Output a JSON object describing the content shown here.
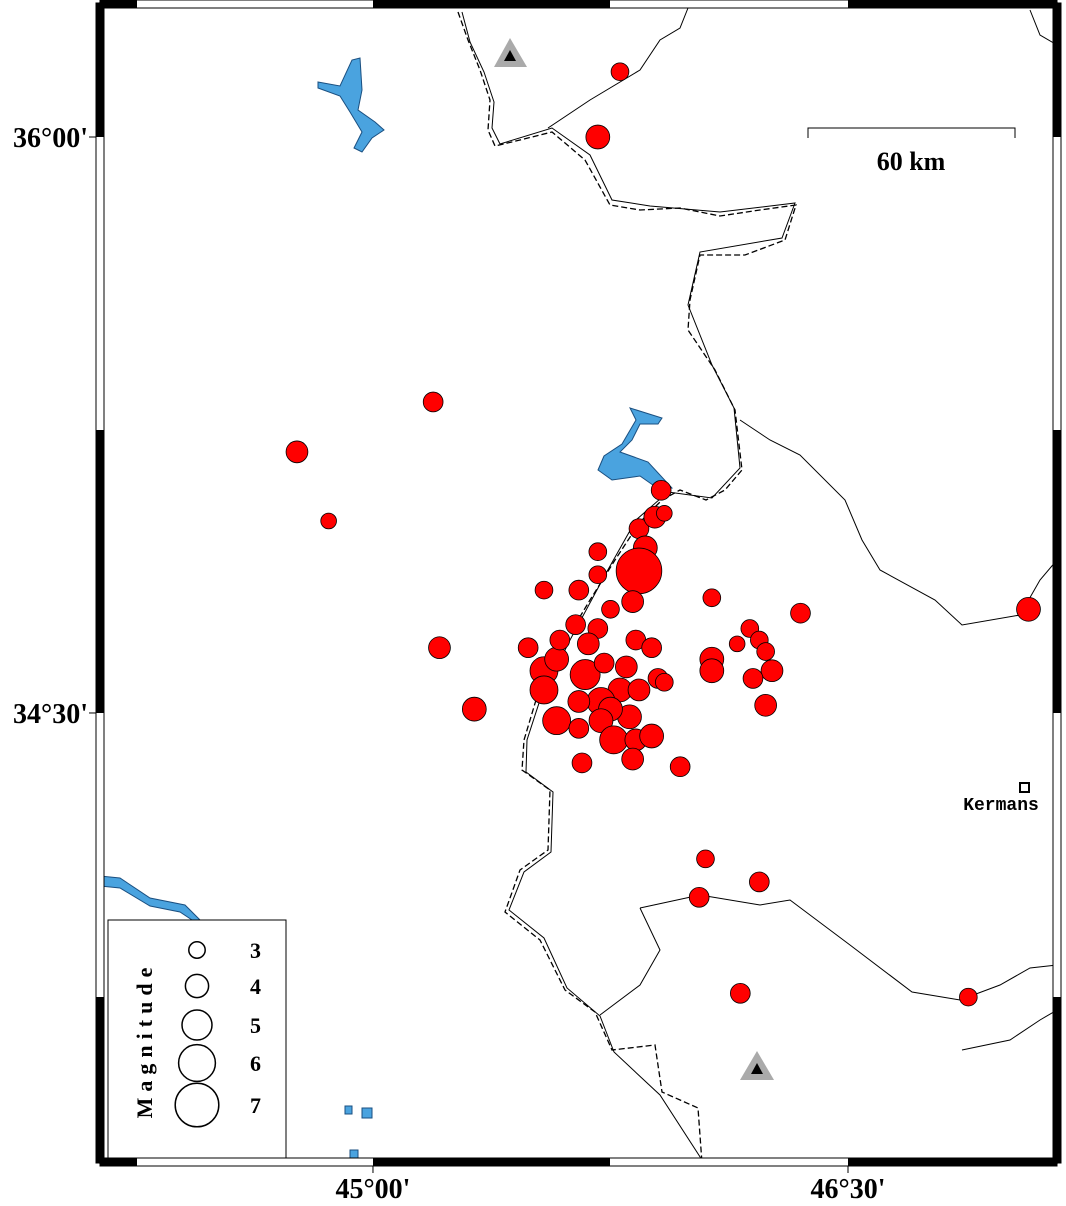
{
  "map": {
    "xlim": [
      44.138,
      47.16
    ],
    "ylim": [
      33.328,
      36.349
    ],
    "xticks": [
      {
        "value": 45,
        "label": "45°00'"
      },
      {
        "value": 46.5,
        "label": "46°30'"
      }
    ],
    "yticks": [
      {
        "value": 36,
        "label": "36°00'"
      },
      {
        "value": 34.5,
        "label": "34°30'"
      }
    ],
    "scale_label": "60 km",
    "city": "Kermans",
    "legend": {
      "title": "Magnitude",
      "sizes": [
        3,
        4,
        5,
        6,
        7
      ]
    },
    "events": {
      "lon": [
        45.78,
        45.71,
        45.19,
        44.76,
        44.86,
        45.91,
        45.84,
        45.89,
        45.92,
        45.86,
        45.84,
        45.71,
        45.54,
        45.65,
        45.71,
        45.75,
        45.82,
        46.07,
        46.35,
        46.19,
        46.15,
        46.22,
        46.24,
        46.07,
        46.07,
        46.26,
        46.2,
        46.24,
        47.07,
        45.21,
        45.32,
        45.49,
        45.54,
        45.54,
        45.58,
        45.59,
        45.64,
        45.71,
        45.68,
        45.67,
        45.73,
        45.83,
        45.88,
        45.8,
        45.9,
        45.92,
        45.78,
        45.72,
        45.65,
        45.81,
        45.75,
        45.58,
        45.65,
        45.72,
        45.76,
        45.83,
        45.88,
        45.82,
        45.66,
        45.97,
        46.05,
        46.22,
        46.03,
        46.16,
        46.88,
        45.84
      ],
      "lat": [
        36.17,
        36.0,
        35.31,
        35.18,
        35.0,
        35.08,
        34.98,
        35.01,
        35.02,
        34.93,
        34.87,
        34.92,
        34.82,
        34.82,
        34.86,
        34.77,
        34.79,
        34.8,
        34.76,
        34.72,
        34.68,
        34.69,
        34.66,
        34.64,
        34.61,
        34.61,
        34.59,
        34.52,
        34.77,
        34.67,
        34.51,
        34.67,
        34.61,
        34.56,
        34.64,
        34.69,
        34.73,
        34.72,
        34.68,
        34.6,
        34.63,
        34.69,
        34.67,
        34.62,
        34.59,
        34.58,
        34.56,
        34.53,
        34.53,
        34.49,
        34.51,
        34.48,
        34.46,
        34.48,
        34.43,
        34.43,
        34.44,
        34.38,
        34.37,
        34.36,
        34.12,
        34.06,
        34.02,
        33.77,
        33.76,
        34.56
      ],
      "mag": [
        3.2,
        4.1,
        3.5,
        3.8,
        2.9,
        3.5,
        3.5,
        3.8,
        2.9,
        4.1,
        7.3,
        3.2,
        3.2,
        3.5,
        3.2,
        3.2,
        3.8,
        3.2,
        3.5,
        3.2,
        2.9,
        3.2,
        3.2,
        4.1,
        4.1,
        3.8,
        3.5,
        3.8,
        4.1,
        3.8,
        4.1,
        3.5,
        4.7,
        4.7,
        4.1,
        3.5,
        3.5,
        3.5,
        3.8,
        5.0,
        3.5,
        3.5,
        3.5,
        3.8,
        3.5,
        3.2,
        4.1,
        4.7,
        3.8,
        4.1,
        4.1,
        4.7,
        3.5,
        4.1,
        4.7,
        3.8,
        4.1,
        3.8,
        3.5,
        3.5,
        3.2,
        3.5,
        3.5,
        3.5,
        3.2,
        3.8
      ]
    }
  }
}
